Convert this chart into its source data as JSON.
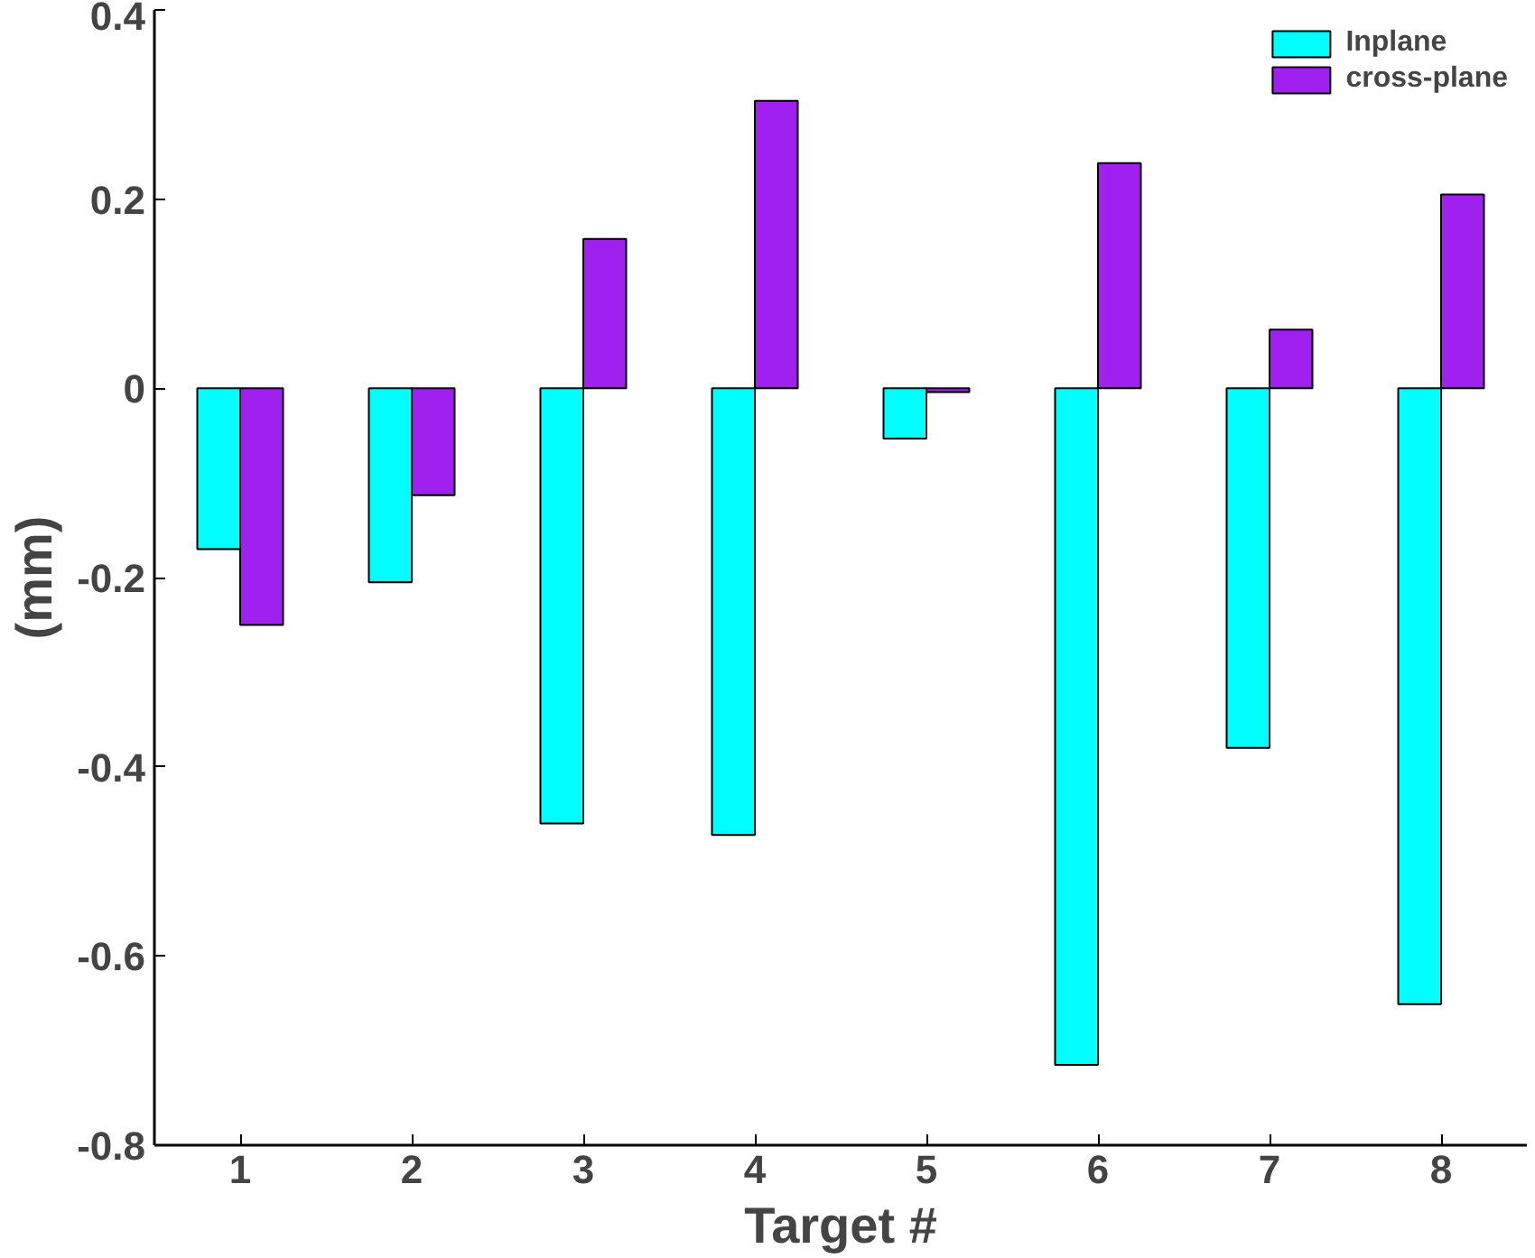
{
  "chart_data": {
    "type": "bar",
    "xlabel": "Target #",
    "ylabel": "(mm)",
    "categories": [
      "1",
      "2",
      "3",
      "4",
      "5",
      "6",
      "7",
      "8"
    ],
    "series": [
      {
        "name": "Inplane",
        "color": "#00ffff",
        "values": [
          -0.17,
          -0.205,
          -0.46,
          -0.472,
          -0.053,
          -0.715,
          -0.38,
          -0.651
        ]
      },
      {
        "name": "cross-plane",
        "color": "#a020f0",
        "values": [
          -0.25,
          -0.113,
          0.158,
          0.304,
          -0.004,
          0.238,
          0.062,
          0.205
        ]
      }
    ],
    "ylim": [
      -0.8,
      0.4
    ],
    "yticks": [
      -0.8,
      -0.6,
      -0.4,
      -0.2,
      0,
      0.2,
      0.4
    ],
    "grid": false,
    "legend": "top right"
  }
}
